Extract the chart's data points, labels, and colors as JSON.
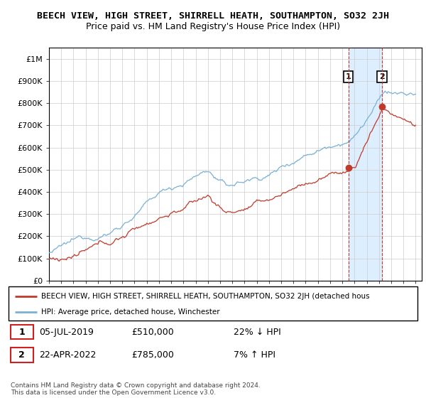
{
  "title": "BEECH VIEW, HIGH STREET, SHIRRELL HEATH, SOUTHAMPTON, SO32 2JH",
  "subtitle": "Price paid vs. HM Land Registry's House Price Index (HPI)",
  "title_fontsize": 9.5,
  "subtitle_fontsize": 9,
  "ylim": [
    0,
    1050000
  ],
  "yticks": [
    0,
    100000,
    200000,
    300000,
    400000,
    500000,
    600000,
    700000,
    800000,
    900000,
    1000000
  ],
  "ytick_labels": [
    "£0",
    "£100K",
    "£200K",
    "£300K",
    "£400K",
    "£500K",
    "£600K",
    "£700K",
    "£800K",
    "£900K",
    "£1M"
  ],
  "hpi_color": "#7ab0d4",
  "price_color": "#c0392b",
  "sale1_x": 2019.5,
  "sale2_x": 2022.25,
  "sale1_price": 510000,
  "sale2_price": 785000,
  "sale1_label": "05-JUL-2019",
  "sale2_label": "22-APR-2022",
  "sale1_pct": "22% ↓ HPI",
  "sale2_pct": "7% ↑ HPI",
  "legend_line1": "BEECH VIEW, HIGH STREET, SHIRRELL HEATH, SOUTHAMPTON, SO32 2JH (detached hous",
  "legend_line2": "HPI: Average price, detached house, Winchester",
  "footer": "Contains HM Land Registry data © Crown copyright and database right 2024.\nThis data is licensed under the Open Government Licence v3.0.",
  "bg_color": "#ffffff",
  "plot_bg_color": "#ffffff",
  "grid_color": "#cccccc",
  "shade_color": "#ddeeff",
  "xlim_left": 1995,
  "xlim_right": 2025.5
}
